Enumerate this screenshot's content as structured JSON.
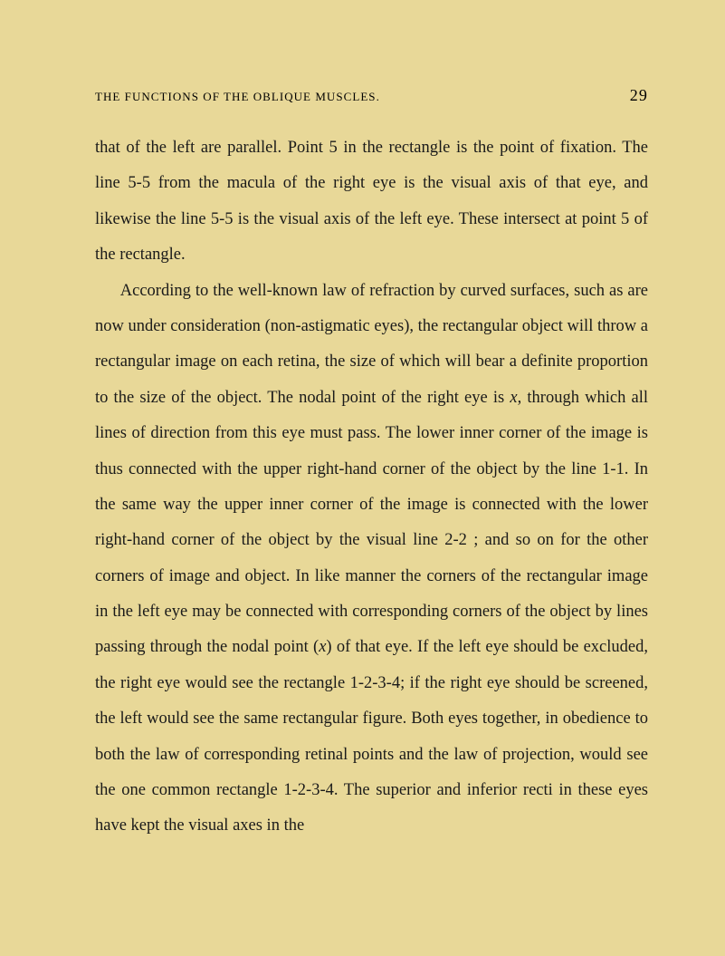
{
  "header": {
    "title": "THE FUNCTIONS OF THE OBLIQUE MUSCLES.",
    "page_number": "29"
  },
  "paragraphs": {
    "p1": "that of the left are parallel. Point 5 in the rectangle is the point of fixation. The line 5-5 from the macula of the right eye is the visual axis of that eye, and likewise the line 5-5 is the visual axis of the left eye. These intersect at point 5 of the rectangle.",
    "p2_part1": "According to the well-known law of refraction by curved surfaces, such as are now under consideration (non-astigmatic eyes), the rectangular object will throw a rectangular image on each retina, the size of which will bear a definite proportion to the size of the object. The nodal point of the right eye is ",
    "p2_italic1": "x",
    "p2_part2": ", through which all lines of direction from this eye must pass. The lower inner corner of the image is thus connected with the upper right-hand corner of the object by the line 1-1. In the same way the upper inner corner of the image is connected with the lower right-hand corner of the object by the visual line 2-2 ; and so on for the other corners of image and object. In like manner the corners of the rectangular image in the left eye may be connected with corresponding corners of the object by lines passing through the nodal point (",
    "p2_italic2": "x",
    "p2_part3": ") of that eye. If the left eye should be excluded, the right eye would see the rectangle 1-2-3-4; if the right eye should be screened, the left would see the same rectangular figure. Both eyes together, in obedience to both the law of corresponding retinal points and the law of projection, would see the one common rectangle 1-2-3-4. The superior and inferior recti in these eyes have kept the visual axes in the"
  },
  "colors": {
    "background": "#e8d898",
    "text": "#1a1a1a"
  },
  "typography": {
    "body_fontsize": 18.5,
    "header_fontsize": 13,
    "pagenum_fontsize": 18,
    "line_height": 2.13,
    "font_family": "Georgia, Times New Roman, serif"
  }
}
